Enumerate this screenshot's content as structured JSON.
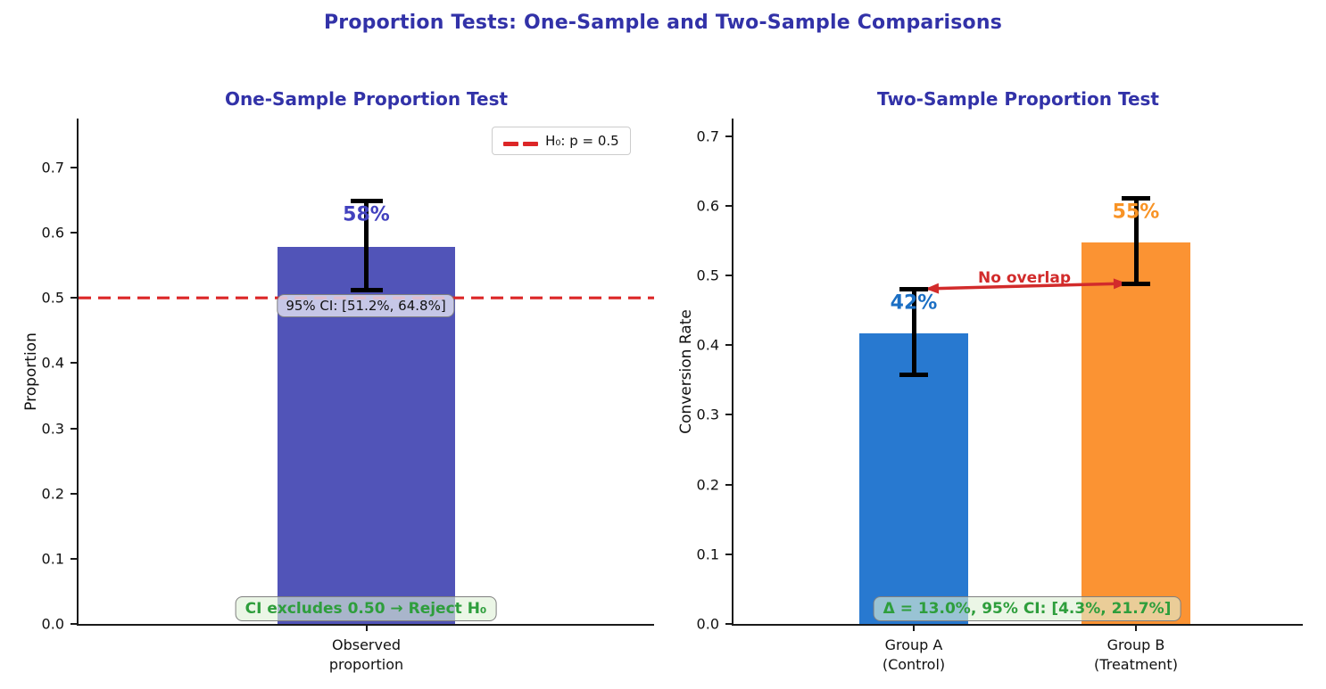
{
  "figure": {
    "title": "Proportion Tests: One-Sample and Two-Sample Comparisons"
  },
  "palette": {
    "title_color": "#3232A8",
    "axis_color": "#1a1a1a",
    "error_bar_color": "#000000",
    "reference_red": "#DC2627",
    "arrow_red": "#D22B2B",
    "green_text": "#2E9E3C"
  },
  "chart_data": [
    {
      "type": "bar",
      "title": "One-Sample Proportion Test",
      "ylabel": "Proportion",
      "ylim": [
        0,
        0.775
      ],
      "yticks": [
        "0.0",
        "0.1",
        "0.2",
        "0.3",
        "0.4",
        "0.5",
        "0.6",
        "0.7"
      ],
      "categories": [
        "Observed\nproportion"
      ],
      "values": [
        0.578
      ],
      "bar_labels": [
        "58%"
      ],
      "bar_colors": [
        "#5154B8"
      ],
      "bar_label_colors": [
        "#4241BE"
      ],
      "error_bars": [
        {
          "low": 0.512,
          "high": 0.648
        }
      ],
      "reference_line": {
        "value": 0.5,
        "color": "#DC2627",
        "style": "dashed"
      },
      "legend": {
        "position": "upper right",
        "entries": [
          {
            "label": "H₀: p = 0.5",
            "marker": "red-dashed-line"
          }
        ]
      },
      "annotations": [
        {
          "text": "95% CI: [51.2%, 64.8%]",
          "kind": "ci"
        },
        {
          "text": "CI excludes 0.50 → Reject H₀",
          "kind": "conclusion"
        }
      ],
      "grid": false
    },
    {
      "type": "bar",
      "title": "Two-Sample Proportion Test",
      "ylabel": "Conversion Rate",
      "ylim": [
        0,
        0.725
      ],
      "yticks": [
        "0.0",
        "0.1",
        "0.2",
        "0.3",
        "0.4",
        "0.5",
        "0.6",
        "0.7"
      ],
      "categories": [
        "Group A\n(Control)",
        "Group B\n(Treatment)"
      ],
      "values": [
        0.417,
        0.547
      ],
      "bar_labels": [
        "42%",
        "55%"
      ],
      "bar_colors": [
        "#2879D0",
        "#FB9333"
      ],
      "bar_label_colors": [
        "#1B6FC4",
        "#F89325"
      ],
      "error_bars": [
        {
          "low": 0.358,
          "high": 0.48
        },
        {
          "low": 0.488,
          "high": 0.61
        }
      ],
      "arrow_annotation": {
        "text": "No overlap"
      },
      "annotations": [
        {
          "text": "Δ = 13.0%,  95% CI: [4.3%, 21.7%]",
          "kind": "conclusion"
        }
      ],
      "grid": false
    }
  ]
}
